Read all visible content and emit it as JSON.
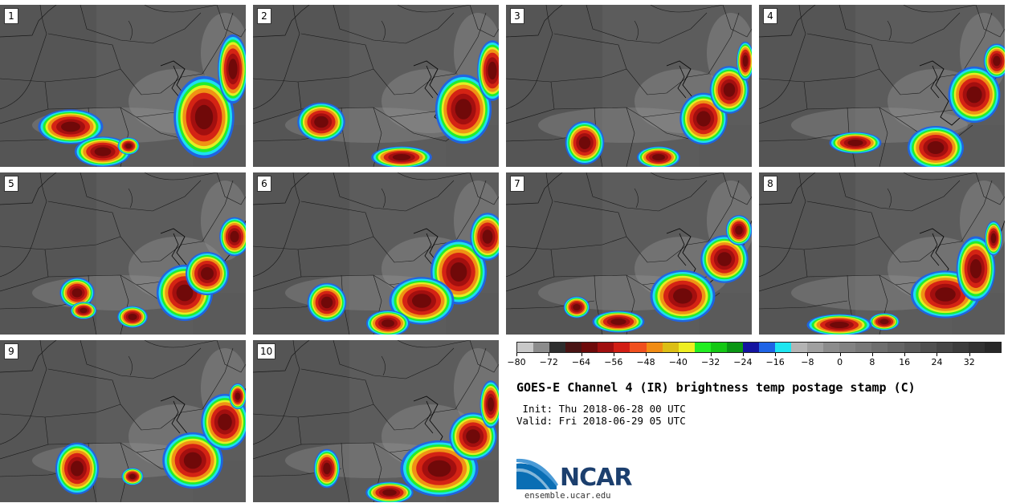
{
  "panels": [
    {
      "label": "1"
    },
    {
      "label": "2"
    },
    {
      "label": "3"
    },
    {
      "label": "4"
    },
    {
      "label": "5"
    },
    {
      "label": "6"
    },
    {
      "label": "7"
    },
    {
      "label": "8"
    },
    {
      "label": "9"
    },
    {
      "label": "10"
    }
  ],
  "colorbar": {
    "colors": [
      "#c8c8c8",
      "#8c8c8c",
      "#2e2e2e",
      "#4a1414",
      "#6e0a0a",
      "#a00f0f",
      "#d21e14",
      "#f0501e",
      "#f08c14",
      "#dcbe14",
      "#eeee22",
      "#22ee22",
      "#14c814",
      "#0a9614",
      "#1414a0",
      "#1e64e6",
      "#1ee6f0",
      "#b4b4b4",
      "#a0a0a0",
      "#8c8c8c",
      "#828282",
      "#787878",
      "#6e6e6e",
      "#646464",
      "#5a5a5a",
      "#505050",
      "#464646",
      "#3c3c3c",
      "#323232",
      "#282828"
    ],
    "tick_labels": [
      "−80",
      "−72",
      "−64",
      "−56",
      "−48",
      "−40",
      "−32",
      "−24",
      "−16",
      "−8",
      "0",
      "8",
      "16",
      "24",
      "32"
    ],
    "min": -80,
    "max": 40
  },
  "title": "GOES-E Channel 4 (IR) brightness temp postage stamp (C)",
  "init_line": " Init: Thu 2018-06-28 00 UTC",
  "valid_line": "Valid: Fri 2018-06-29 05 UTC",
  "logo": {
    "text": "NCAR",
    "url": "ensemble.ucar.edu"
  }
}
